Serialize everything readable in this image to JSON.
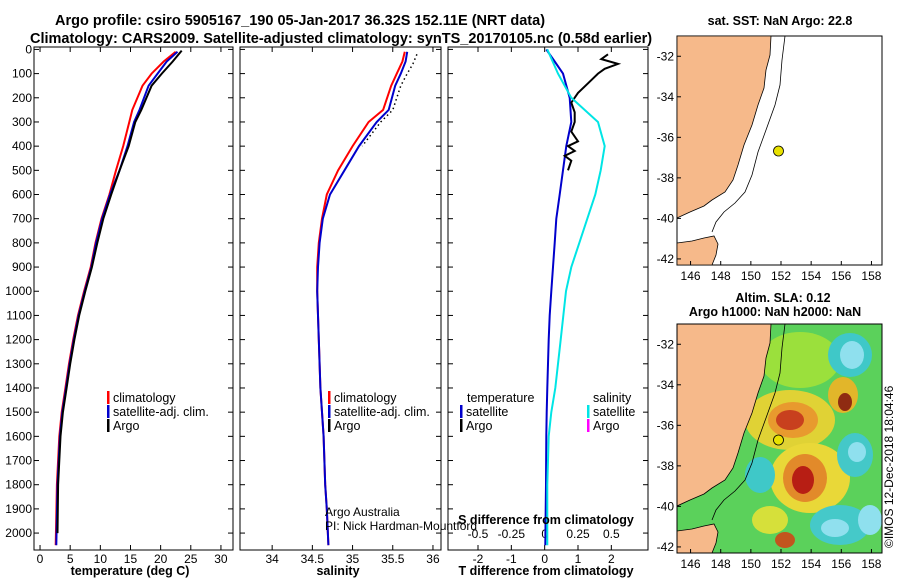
{
  "header": {
    "line1": "Argo profile: csiro 5905167_190 05-Jan-2017 36.32S 152.11E (NRT data)",
    "line2": "Climatology: CARS2009. Satellite-adjusted climatology: synTS_20170105.nc (0.58d earlier)"
  },
  "colors": {
    "climatology": "#ff0000",
    "satellite": "#0000cc",
    "argo": "#000000",
    "sat_salinity": "#00e5e5",
    "argo_salinity": "#ff00ff",
    "land": "#f6b98a"
  },
  "chart_data": [
    {
      "type": "line",
      "name": "temperature-profile",
      "xlabel": "temperature (deg C)",
      "xlim": [
        -1,
        32
      ],
      "ylim": [
        2070,
        -10
      ],
      "xticks": [
        "0",
        "5",
        "10",
        "15",
        "20",
        "25",
        "30"
      ],
      "yticks": [
        "0",
        "100",
        "200",
        "300",
        "400",
        "500",
        "600",
        "700",
        "800",
        "900",
        "1000",
        "1100",
        "1200",
        "1300",
        "1400",
        "1500",
        "1600",
        "1700",
        "1800",
        "1900",
        "2000"
      ],
      "legend": [
        "climatology",
        "satellite-adj. clim.",
        "Argo"
      ],
      "series": [
        {
          "name": "climatology",
          "x": [
            22.5,
            20.5,
            18.5,
            17,
            15.3,
            14.8,
            13.8,
            12.6,
            11.5,
            10.2,
            9.2,
            8.4,
            7.3,
            6.3,
            5.5,
            4.8,
            4.2,
            3.6,
            3.2,
            3.0,
            2.8,
            2.6
          ],
          "y": [
            10,
            50,
            100,
            150,
            250,
            300,
            400,
            500,
            600,
            700,
            800,
            900,
            1000,
            1100,
            1200,
            1300,
            1400,
            1500,
            1600,
            1700,
            1800,
            2050
          ]
        },
        {
          "name": "satellite-adj. clim.",
          "x": [
            22.8,
            21,
            19.5,
            18,
            16.5,
            15.6,
            14.5,
            13.2,
            11.6,
            10.3,
            9.3,
            8.5,
            7.4,
            6.4,
            5.6,
            4.9,
            4.3,
            3.7,
            3.3,
            3.1,
            2.9,
            2.7
          ],
          "y": [
            10,
            50,
            100,
            150,
            250,
            300,
            400,
            500,
            600,
            700,
            800,
            900,
            1000,
            1100,
            1200,
            1300,
            1400,
            1500,
            1600,
            1700,
            1800,
            2050
          ]
        },
        {
          "name": "Argo",
          "x": [
            23.5,
            22,
            20.2,
            18.5,
            16.8,
            15.8,
            14.7,
            13.2,
            11.8,
            10.5,
            9.5,
            8.6,
            7.5,
            6.5,
            5.7,
            5.0,
            4.4,
            3.8,
            3.4,
            3.2,
            3.0,
            2.9
          ],
          "y": [
            5,
            50,
            100,
            150,
            250,
            300,
            400,
            500,
            600,
            700,
            800,
            900,
            1000,
            1100,
            1200,
            1300,
            1400,
            1500,
            1600,
            1700,
            1800,
            2000
          ]
        }
      ]
    },
    {
      "type": "line",
      "name": "salinity-profile",
      "xlabel": "salinity",
      "xlim": [
        33.6,
        36.1
      ],
      "ylim": [
        2070,
        -10
      ],
      "xticks": [
        "34",
        "34.5",
        "35",
        "35.5",
        "36"
      ],
      "legend": [
        "climatology",
        "satellite-adj. clim.",
        "Argo"
      ],
      "annotation": [
        "Argo Australia",
        "PI: Nick Hardman-Mountford"
      ],
      "series": [
        {
          "name": "climatology",
          "x": [
            35.65,
            35.62,
            35.55,
            35.48,
            35.38,
            35.2,
            35.0,
            34.82,
            34.68,
            34.62,
            34.58,
            34.56,
            34.56,
            34.57,
            34.58,
            34.6,
            34.62,
            34.64,
            34.66,
            34.68,
            34.7
          ],
          "y": [
            10,
            50,
            100,
            150,
            250,
            300,
            400,
            500,
            600,
            700,
            800,
            900,
            1000,
            1100,
            1200,
            1400,
            1500,
            1600,
            1800,
            1900,
            2050
          ]
        },
        {
          "name": "satellite-adj. clim.",
          "x": [
            35.68,
            35.66,
            35.6,
            35.53,
            35.45,
            35.3,
            35.08,
            34.9,
            34.72,
            34.63,
            34.59,
            34.57,
            34.56,
            34.57,
            34.58,
            34.6,
            34.62,
            34.64,
            34.66,
            34.68,
            34.7
          ],
          "y": [
            10,
            50,
            100,
            150,
            250,
            300,
            400,
            500,
            600,
            700,
            800,
            900,
            1000,
            1100,
            1200,
            1400,
            1500,
            1600,
            1800,
            1900,
            2050
          ]
        },
        {
          "name": "Argo",
          "x": [
            35.8,
            35.75,
            35.68,
            35.6,
            35.5,
            35.35,
            35.12
          ],
          "y": [
            20,
            60,
            100,
            150,
            250,
            300,
            400
          ]
        }
      ]
    },
    {
      "type": "line",
      "name": "difference-profile",
      "xlabel": "T difference from climatology",
      "xlabel_top": "S difference from climatology",
      "xlim": [
        -2.9,
        3.1
      ],
      "ylim": [
        2070,
        -10
      ],
      "xticks": [
        "-2",
        "-1",
        "0",
        "1",
        "2"
      ],
      "s_ticks": [
        "-0.5",
        "-0.25",
        "0",
        "0.25",
        "0.5"
      ],
      "legend_left_title": "temperature",
      "legend_right_title": "salinity",
      "legend_left": [
        "satellite",
        "Argo"
      ],
      "legend_right": [
        "satellite",
        "Argo"
      ],
      "series": [
        {
          "name": "temperature satellite",
          "x": [
            0.05,
            0.3,
            0.55,
            0.75,
            0.8,
            0.65,
            0.55,
            0.45,
            0.35,
            0.3,
            0.25,
            0.2,
            0.15,
            0.12,
            0.1,
            0.08,
            0.06,
            0.05,
            0.04,
            0.03,
            0.02
          ],
          "y": [
            0,
            50,
            100,
            200,
            300,
            400,
            500,
            600,
            700,
            800,
            900,
            1000,
            1100,
            1200,
            1300,
            1400,
            1500,
            1600,
            1800,
            1900,
            2050
          ]
        },
        {
          "name": "temperature Argo",
          "x": [
            1.9,
            1.7,
            2.2,
            1.8,
            1.6,
            1.3,
            1.0,
            0.8,
            0.9,
            0.9,
            0.8,
            1.0,
            0.7,
            0.9,
            0.6,
            0.8,
            0.7
          ],
          "y": [
            20,
            40,
            60,
            80,
            100,
            140,
            180,
            220,
            260,
            300,
            340,
            380,
            400,
            420,
            440,
            460,
            500
          ]
        },
        {
          "name": "salinity satellite",
          "x": [
            0.02,
            0.1,
            0.2,
            0.4,
            0.45,
            0.42,
            0.38,
            0.32,
            0.26,
            0.2,
            0.16,
            0.12,
            0.08,
            0.05,
            0.03,
            0.02,
            0.02
          ],
          "y": [
            0,
            100,
            200,
            300,
            400,
            500,
            600,
            700,
            800,
            900,
            1000,
            1200,
            1400,
            1500,
            1600,
            1800,
            2050
          ]
        }
      ]
    }
  ],
  "map_sst": {
    "title": "sat. SST: NaN Argo: 22.8",
    "yticks": [
      "-32",
      "-34",
      "-36",
      "-38",
      "-40",
      "-42"
    ],
    "xticks": [
      "146",
      "148",
      "150",
      "152",
      "154",
      "156",
      "158"
    ]
  },
  "map_sla": {
    "title1": "Altim. SLA: 0.12",
    "title2": "Argo h1000: NaN h2000: NaN",
    "yticks": [
      "-32",
      "-34",
      "-36",
      "-38",
      "-40",
      "-42"
    ],
    "xticks": [
      "146",
      "148",
      "150",
      "152",
      "154",
      "156",
      "158"
    ]
  },
  "credit": "©IMOS 12-Dec-2018 18:04:46"
}
